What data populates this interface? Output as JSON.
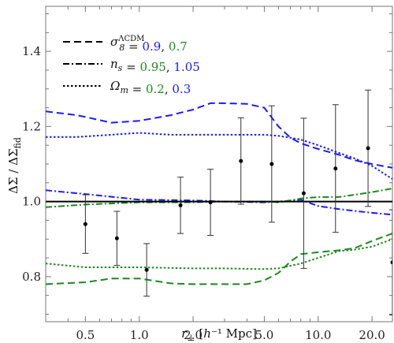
{
  "chart_data": {
    "type": "line",
    "xlabel": "r⊥ [h⁻¹ Mpc]",
    "ylabel": "ΔΣ / ΔΣfid",
    "xscale": "log",
    "xlim": [
      0.3,
      26
    ],
    "ylim": [
      0.68,
      1.52
    ],
    "x_ticks": [
      0.5,
      1.0,
      2.0,
      5.0,
      10.0,
      20.0
    ],
    "x_tick_labels": [
      "0.5",
      "1.0",
      "2.0",
      "5.0",
      "10.0",
      "20.0"
    ],
    "y_ticks": [
      0.8,
      1.0,
      1.2,
      1.4
    ],
    "y_tick_labels": [
      "0.8",
      "1.0",
      "1.2",
      "1.4"
    ],
    "reference_line": 1.0,
    "grid": false,
    "legend_position": "top-left",
    "legend": [
      {
        "label": "σ8ΛCDM",
        "label_sym": "σ",
        "label_sub": "8",
        "label_sup": "ΛCDM",
        "eq": " = ",
        "values": [
          {
            "text": "0.9",
            "color": "#1a1aff"
          },
          {
            "text": "0.7",
            "color": "#1a8a1a"
          }
        ],
        "sep": ", ",
        "style": "dashed"
      },
      {
        "label": "ns",
        "label_sym": "n",
        "label_sub": "s",
        "label_sup": "",
        "eq": " = ",
        "values": [
          {
            "text": "0.95",
            "color": "#1a8a1a"
          },
          {
            "text": "1.05",
            "color": "#1a1aff"
          }
        ],
        "sep": ", ",
        "style": "dashdot"
      },
      {
        "label": "Ωm",
        "label_sym": "Ω",
        "label_sub": "m",
        "label_sup": "",
        "eq": " = ",
        "values": [
          {
            "text": "0.2",
            "color": "#1a8a1a"
          },
          {
            "text": "0.3",
            "color": "#1a1aff"
          }
        ],
        "sep": ", ",
        "style": "dotted"
      }
    ],
    "colors": {
      "blue": "#1a1aff",
      "green": "#1a8a1a",
      "black": "#000000"
    },
    "series": [
      {
        "color": "blue",
        "style": "dashed",
        "x": [
          0.3,
          0.45,
          0.7,
          1.0,
          1.5,
          2.0,
          2.5,
          3.0,
          4.0,
          5.0,
          6.0,
          7.0,
          8.0,
          10.0,
          13.0,
          16.0,
          20.0,
          26.0
        ],
        "y": [
          1.24,
          1.23,
          1.21,
          1.215,
          1.23,
          1.245,
          1.262,
          1.262,
          1.26,
          1.25,
          1.2,
          1.17,
          1.155,
          1.14,
          1.125,
          1.11,
          1.1,
          1.09
        ]
      },
      {
        "color": "blue",
        "style": "dotted",
        "x": [
          0.3,
          0.45,
          0.7,
          1.0,
          1.5,
          2.0,
          3.0,
          4.0,
          5.0,
          6.0,
          7.0,
          8.0,
          10.0,
          13.0,
          16.0,
          20.0,
          26.0
        ],
        "y": [
          1.172,
          1.172,
          1.178,
          1.183,
          1.178,
          1.178,
          1.178,
          1.178,
          1.178,
          1.175,
          1.17,
          1.165,
          1.15,
          1.13,
          1.115,
          1.095,
          1.06
        ]
      },
      {
        "color": "blue",
        "style": "dashdot",
        "x": [
          0.3,
          0.5,
          1.0,
          2.0,
          3.0,
          5.0,
          6.0,
          7.0,
          8.0,
          10.0,
          13.0,
          16.0,
          20.0,
          26.0
        ],
        "y": [
          1.03,
          1.02,
          1.005,
          1.003,
          1.0,
          0.998,
          1.0,
          1.002,
          1.005,
          0.988,
          0.98,
          0.975,
          0.97,
          0.965
        ]
      },
      {
        "color": "green",
        "style": "dashdot",
        "x": [
          0.3,
          0.5,
          1.0,
          2.0,
          3.0,
          5.0,
          6.0,
          8.0,
          10.0,
          13.0,
          16.0,
          20.0,
          26.0
        ],
        "y": [
          0.985,
          0.992,
          0.998,
          0.998,
          1.0,
          1.0,
          0.998,
          1.008,
          1.012,
          1.012,
          1.018,
          1.025,
          1.035
        ]
      },
      {
        "color": "green",
        "style": "dotted",
        "x": [
          0.3,
          0.5,
          1.0,
          2.0,
          3.0,
          5.0,
          6.0,
          8.0,
          10.0,
          13.0,
          16.0,
          20.0,
          26.0
        ],
        "y": [
          0.835,
          0.825,
          0.825,
          0.822,
          0.822,
          0.82,
          0.822,
          0.835,
          0.85,
          0.868,
          0.872,
          0.88,
          0.9
        ]
      },
      {
        "color": "green",
        "style": "dashed",
        "x": [
          0.3,
          0.5,
          0.7,
          1.0,
          1.5,
          2.0,
          3.0,
          4.0,
          5.0,
          6.0,
          7.0,
          8.0,
          10.0,
          13.0,
          16.0,
          20.0,
          26.0
        ],
        "y": [
          0.78,
          0.785,
          0.795,
          0.795,
          0.782,
          0.78,
          0.78,
          0.78,
          0.79,
          0.81,
          0.84,
          0.86,
          0.865,
          0.87,
          0.876,
          0.895,
          0.915
        ]
      }
    ],
    "error_points": {
      "x": [
        0.5,
        0.75,
        1.1,
        1.7,
        2.5,
        3.7,
        5.5,
        8.3,
        12.5,
        19.0,
        26.0
      ],
      "y": [
        0.94,
        0.902,
        0.818,
        0.99,
        0.998,
        1.108,
        1.1,
        1.022,
        1.088,
        1.142,
        0.838
      ],
      "yerr": [
        0.078,
        0.072,
        0.07,
        0.075,
        0.088,
        0.115,
        0.155,
        0.2,
        0.17,
        0.155,
        0.14
      ]
    }
  }
}
